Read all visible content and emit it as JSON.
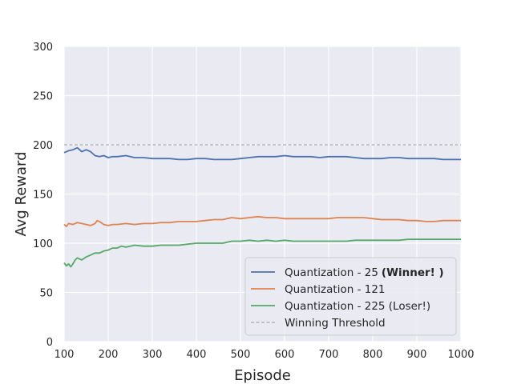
{
  "chart_data": {
    "type": "line",
    "title": "",
    "xlabel": "Episode",
    "ylabel": "Avg Reward",
    "xlim": [
      100,
      1000
    ],
    "ylim": [
      0,
      300
    ],
    "xticks": [
      100,
      200,
      300,
      400,
      500,
      600,
      700,
      800,
      900,
      1000
    ],
    "yticks": [
      0,
      50,
      100,
      150,
      200,
      250,
      300
    ],
    "grid": true,
    "legend_position": "bottom-right",
    "series": [
      {
        "name": "Quantization - 25",
        "name_suffix": "(Winner! )",
        "color": "#4c72b0",
        "points": [
          [
            100,
            192
          ],
          [
            110,
            194
          ],
          [
            120,
            195
          ],
          [
            130,
            197
          ],
          [
            140,
            193
          ],
          [
            150,
            195
          ],
          [
            160,
            193
          ],
          [
            170,
            189
          ],
          [
            180,
            188
          ],
          [
            190,
            189
          ],
          [
            200,
            187
          ],
          [
            210,
            188
          ],
          [
            220,
            188
          ],
          [
            240,
            189
          ],
          [
            260,
            187
          ],
          [
            280,
            187
          ],
          [
            300,
            186
          ],
          [
            320,
            186
          ],
          [
            340,
            186
          ],
          [
            360,
            185
          ],
          [
            380,
            185
          ],
          [
            400,
            186
          ],
          [
            420,
            186
          ],
          [
            440,
            185
          ],
          [
            460,
            185
          ],
          [
            480,
            185
          ],
          [
            500,
            186
          ],
          [
            520,
            187
          ],
          [
            540,
            188
          ],
          [
            560,
            188
          ],
          [
            580,
            188
          ],
          [
            600,
            189
          ],
          [
            620,
            188
          ],
          [
            640,
            188
          ],
          [
            660,
            188
          ],
          [
            680,
            187
          ],
          [
            700,
            188
          ],
          [
            720,
            188
          ],
          [
            740,
            188
          ],
          [
            760,
            187
          ],
          [
            780,
            186
          ],
          [
            800,
            186
          ],
          [
            820,
            186
          ],
          [
            840,
            187
          ],
          [
            860,
            187
          ],
          [
            880,
            186
          ],
          [
            900,
            186
          ],
          [
            920,
            186
          ],
          [
            940,
            186
          ],
          [
            960,
            185
          ],
          [
            980,
            185
          ],
          [
            1000,
            185
          ]
        ]
      },
      {
        "name": "Quantization - 121",
        "color": "#dd8452",
        "points": [
          [
            100,
            119
          ],
          [
            105,
            117
          ],
          [
            110,
            120
          ],
          [
            120,
            119
          ],
          [
            130,
            121
          ],
          [
            140,
            120
          ],
          [
            150,
            119
          ],
          [
            160,
            118
          ],
          [
            170,
            120
          ],
          [
            175,
            123
          ],
          [
            180,
            122
          ],
          [
            190,
            119
          ],
          [
            200,
            118
          ],
          [
            210,
            119
          ],
          [
            220,
            119
          ],
          [
            240,
            120
          ],
          [
            260,
            119
          ],
          [
            280,
            120
          ],
          [
            300,
            120
          ],
          [
            320,
            121
          ],
          [
            340,
            121
          ],
          [
            360,
            122
          ],
          [
            380,
            122
          ],
          [
            400,
            122
          ],
          [
            420,
            123
          ],
          [
            440,
            124
          ],
          [
            460,
            124
          ],
          [
            480,
            126
          ],
          [
            500,
            125
          ],
          [
            520,
            126
          ],
          [
            540,
            127
          ],
          [
            560,
            126
          ],
          [
            580,
            126
          ],
          [
            600,
            125
          ],
          [
            620,
            125
          ],
          [
            640,
            125
          ],
          [
            660,
            125
          ],
          [
            680,
            125
          ],
          [
            700,
            125
          ],
          [
            720,
            126
          ],
          [
            740,
            126
          ],
          [
            760,
            126
          ],
          [
            780,
            126
          ],
          [
            800,
            125
          ],
          [
            820,
            124
          ],
          [
            840,
            124
          ],
          [
            860,
            124
          ],
          [
            880,
            123
          ],
          [
            900,
            123
          ],
          [
            920,
            122
          ],
          [
            940,
            122
          ],
          [
            960,
            123
          ],
          [
            980,
            123
          ],
          [
            1000,
            123
          ]
        ]
      },
      {
        "name": "Quantization - 225 (Loser!)",
        "color": "#55a868",
        "points": [
          [
            100,
            80
          ],
          [
            105,
            77
          ],
          [
            110,
            79
          ],
          [
            115,
            76
          ],
          [
            120,
            79
          ],
          [
            125,
            83
          ],
          [
            130,
            85
          ],
          [
            140,
            83
          ],
          [
            150,
            86
          ],
          [
            160,
            88
          ],
          [
            170,
            90
          ],
          [
            180,
            90
          ],
          [
            190,
            92
          ],
          [
            200,
            93
          ],
          [
            210,
            95
          ],
          [
            220,
            95
          ],
          [
            230,
            97
          ],
          [
            240,
            96
          ],
          [
            250,
            97
          ],
          [
            260,
            98
          ],
          [
            280,
            97
          ],
          [
            300,
            97
          ],
          [
            320,
            98
          ],
          [
            340,
            98
          ],
          [
            360,
            98
          ],
          [
            380,
            99
          ],
          [
            400,
            100
          ],
          [
            420,
            100
          ],
          [
            440,
            100
          ],
          [
            460,
            100
          ],
          [
            480,
            102
          ],
          [
            500,
            102
          ],
          [
            520,
            103
          ],
          [
            540,
            102
          ],
          [
            560,
            103
          ],
          [
            580,
            102
          ],
          [
            600,
            103
          ],
          [
            620,
            102
          ],
          [
            640,
            102
          ],
          [
            660,
            102
          ],
          [
            680,
            102
          ],
          [
            700,
            102
          ],
          [
            720,
            102
          ],
          [
            740,
            102
          ],
          [
            760,
            103
          ],
          [
            780,
            103
          ],
          [
            800,
            103
          ],
          [
            820,
            103
          ],
          [
            840,
            103
          ],
          [
            860,
            103
          ],
          [
            880,
            104
          ],
          [
            900,
            104
          ],
          [
            920,
            104
          ],
          [
            940,
            104
          ],
          [
            960,
            104
          ],
          [
            980,
            104
          ],
          [
            1000,
            104
          ]
        ]
      }
    ],
    "reference_lines": [
      {
        "name": "Winning Threshold",
        "y": 200,
        "color": "#999999",
        "style": "dashed"
      }
    ]
  }
}
